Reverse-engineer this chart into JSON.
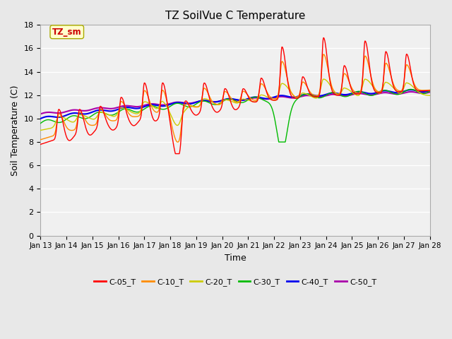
{
  "title": "TZ SoilVue C Temperature",
  "xlabel": "Time",
  "ylabel": "Soil Temperature (C)",
  "ylim": [
    0,
    18
  ],
  "yticks": [
    0,
    2,
    4,
    6,
    8,
    10,
    12,
    14,
    16,
    18
  ],
  "xtick_labels": [
    "Jan 13",
    "Jan 14",
    "Jan 15",
    "Jan 16",
    "Jan 17",
    "Jan 18",
    "Jan 19",
    "Jan 20",
    "Jan 21",
    "Jan 22",
    "Jan 23",
    "Jan 24",
    "Jan 25",
    "Jan 26",
    "Jan 27",
    "Jan 28"
  ],
  "legend_label": "TZ_sm",
  "series": {
    "C-05_T": {
      "color": "#FF0000",
      "lw": 1.0
    },
    "C-10_T": {
      "color": "#FF8C00",
      "lw": 1.0
    },
    "C-20_T": {
      "color": "#CCCC00",
      "lw": 1.0
    },
    "C-30_T": {
      "color": "#00BB00",
      "lw": 1.0
    },
    "C-40_T": {
      "color": "#0000EE",
      "lw": 1.5
    },
    "C-50_T": {
      "color": "#AA00AA",
      "lw": 1.5
    }
  },
  "bg_color": "#E8E8E8",
  "plot_bg": "#F0F0F0",
  "grid_color": "#FFFFFF"
}
